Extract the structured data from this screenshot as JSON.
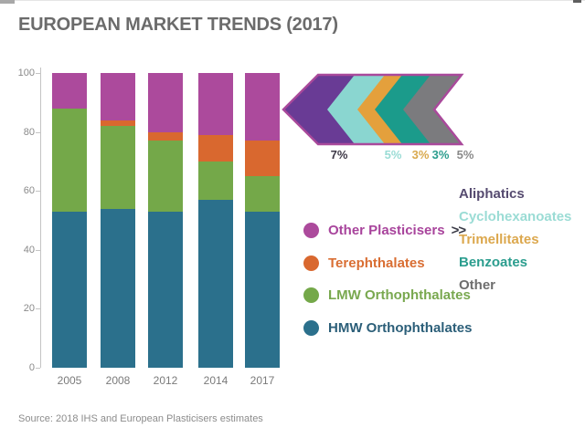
{
  "page": {
    "title": "EUROPEAN MARKET TRENDS (2017)",
    "source": "Source: 2018 IHS and European Plasticisers estimates"
  },
  "chart_data": {
    "type": "bar",
    "stacked": true,
    "title": "EUROPEAN MARKET TRENDS (2017)",
    "categories": [
      "2005",
      "2008",
      "2012",
      "2014",
      "2017"
    ],
    "series": [
      {
        "name": "HMW Orthophthalates",
        "color": "#2B708C",
        "values": [
          53,
          54,
          53,
          57,
          53
        ]
      },
      {
        "name": "LMW Orthophthalates",
        "color": "#74A849",
        "values": [
          35,
          28,
          24,
          13,
          12
        ]
      },
      {
        "name": "Terephthalates",
        "color": "#D9682F",
        "values": [
          0,
          2,
          3,
          9,
          12
        ]
      },
      {
        "name": "Other Plasticisers",
        "color": "#AC4A9C",
        "values": [
          12,
          16,
          20,
          21,
          23
        ]
      }
    ],
    "ylim": [
      0,
      100
    ],
    "yticks": [
      0,
      20,
      40,
      60,
      80,
      100
    ],
    "grid": false,
    "breakdown_2017_other": {
      "arrow_outline_color": "#A9499B",
      "arrow_fill_color": "#693B95",
      "items": [
        {
          "label": "Aliphatics",
          "pct": "7%",
          "chevron_color": "#693B95",
          "text_color": "#564B70",
          "pct_color": "#3E3947"
        },
        {
          "label": "Cyclohexanoates",
          "pct": "5%",
          "chevron_color": "#8AD6D0",
          "text_color": "#9BDCD5",
          "pct_color": "#9ADCD5"
        },
        {
          "label": "Trimellitates",
          "pct": "3%",
          "chevron_color": "#E4A03C",
          "text_color": "#DCA84E",
          "pct_color": "#D9A94E"
        },
        {
          "label": "Benzoates",
          "pct": "3%",
          "chevron_color": "#1B9B8B",
          "text_color": "#2B9D8E",
          "pct_color": "#2B9D8E"
        },
        {
          "label": "Other",
          "pct": "5%",
          "chevron_color": "#7B7B7E",
          "text_color": "#6E6E6E",
          "pct_color": "#8A8A8A"
        }
      ]
    }
  },
  "legend": {
    "pointer_symbol": ">>",
    "items": [
      {
        "label": "Other Plasticisers",
        "circle_color": "#AC4A9C",
        "text_color": "#A8449C",
        "has_pointer": true
      },
      {
        "label": "Terephthalates",
        "circle_color": "#D9682F",
        "text_color": "#D96E33",
        "has_pointer": false
      },
      {
        "label": "LMW Orthophthalates",
        "circle_color": "#74A849",
        "text_color": "#79A84F",
        "has_pointer": false
      },
      {
        "label": "HMW Orthophthalates",
        "circle_color": "#2B708C",
        "text_color": "#2C5F79",
        "has_pointer": false
      }
    ]
  }
}
